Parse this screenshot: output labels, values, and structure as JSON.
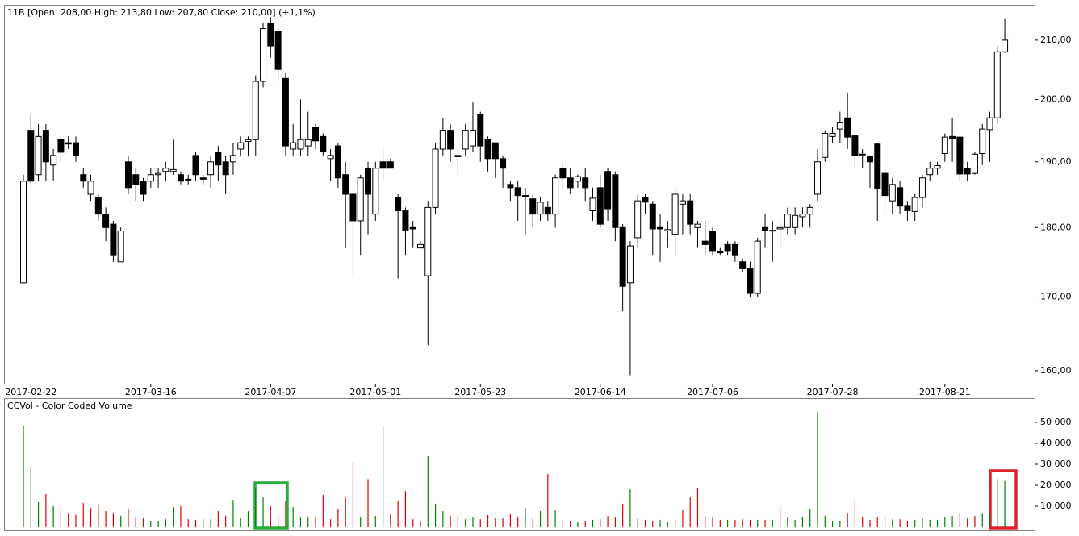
{
  "chart_data": [
    {
      "type": "candlestick",
      "title": "11B [Open: 208,00  High: 213,80  Low: 207,80  Close: 210,00] (+1,1%)",
      "categories": [
        null,
        "2017-02-22",
        null,
        null,
        null,
        null,
        null,
        null,
        null,
        null,
        null,
        null,
        null,
        null,
        null,
        null,
        null,
        "2017-03-16",
        null,
        null,
        null,
        null,
        null,
        null,
        null,
        null,
        null,
        null,
        null,
        null,
        null,
        null,
        null,
        "2017-04-07",
        null,
        null,
        null,
        null,
        null,
        null,
        null,
        null,
        null,
        null,
        null,
        null,
        null,
        "2017-05-01",
        null,
        null,
        null,
        null,
        null,
        null,
        null,
        null,
        null,
        null,
        null,
        null,
        null,
        "2017-05-23",
        null,
        null,
        null,
        null,
        null,
        null,
        null,
        null,
        null,
        null,
        null,
        null,
        null,
        null,
        null,
        "2017-06-14",
        null,
        null,
        null,
        null,
        null,
        null,
        null,
        null,
        null,
        null,
        null,
        null,
        null,
        null,
        "2017-07-06",
        null,
        null,
        null,
        null,
        null,
        null,
        null,
        null,
        null,
        null,
        null,
        null,
        null,
        null,
        null,
        "2017-07-28",
        null,
        null,
        null,
        null,
        null,
        null,
        null,
        null,
        null,
        null,
        null,
        null,
        null,
        null,
        "2017-08-21",
        null,
        null,
        null,
        null,
        null,
        null,
        null,
        null
      ],
      "open": [
        172,
        195,
        188,
        195,
        189.5,
        193.5,
        193,
        193,
        188,
        185,
        184.5,
        182,
        180.5,
        175,
        190,
        188,
        187,
        187,
        188,
        188.5,
        188.5,
        188,
        187.3,
        191,
        187.5,
        188,
        191.5,
        190,
        190,
        192,
        193.2,
        193.5,
        203,
        213,
        211.5,
        203.5,
        192,
        192,
        192.5,
        195.5,
        194,
        190.5,
        192.5,
        188,
        185,
        181,
        189,
        182,
        190,
        190,
        184.5,
        182.5,
        180,
        177,
        173,
        183,
        192,
        195,
        191,
        192,
        192.5,
        197.5,
        193.5,
        193,
        190.5,
        186.5,
        186,
        184.8,
        184.3,
        182,
        183,
        182,
        189,
        187.5,
        187,
        187.5,
        182.5,
        186,
        188.5,
        188,
        180,
        172,
        178.5,
        184.5,
        183.5,
        180,
        179.5,
        179,
        183.5,
        184,
        180,
        178,
        179.5,
        176.5,
        177.5,
        177.5,
        175,
        174,
        170.5,
        180,
        179.5,
        179.8,
        180,
        180,
        181.6,
        182,
        185,
        190.7,
        194,
        195.2,
        197,
        194.1,
        191.2,
        190.8,
        192.8,
        188.2,
        184,
        186,
        183.3,
        182.4,
        184.5,
        188,
        189,
        191.3,
        194,
        193.9,
        189,
        188.2,
        191.3,
        195.1,
        197,
        208
      ],
      "high": [
        188,
        197.5,
        196,
        196,
        192,
        194,
        194,
        194,
        189,
        188,
        185,
        183,
        181,
        180,
        191,
        189,
        187.5,
        189,
        189,
        190,
        193.5,
        188.5,
        188,
        191.5,
        188,
        191,
        192.5,
        191,
        193,
        194,
        194,
        204,
        213,
        214,
        212,
        204.5,
        196,
        200,
        198,
        196,
        194.5,
        192,
        193,
        190,
        186,
        188,
        190,
        190,
        192,
        190.5,
        185,
        183,
        181,
        178,
        184,
        193,
        197,
        196,
        192,
        196,
        199.5,
        198,
        194,
        193,
        191,
        187,
        187,
        186,
        185,
        184.5,
        184,
        188,
        190,
        189,
        188,
        189,
        186,
        188,
        189,
        188.5,
        180.5,
        178,
        185,
        185,
        184,
        182,
        181,
        186,
        185,
        185,
        181,
        181,
        180,
        177,
        178,
        178,
        175.5,
        175,
        178.5,
        182,
        181,
        181,
        183,
        183,
        183,
        183.5,
        192,
        195,
        195.5,
        198,
        201,
        195,
        192,
        191,
        193,
        189,
        187.5,
        187,
        184,
        185,
        188,
        190,
        190,
        194.5,
        197,
        194,
        190,
        191.5,
        196,
        198,
        209,
        213.8
      ],
      "low": [
        172,
        186.5,
        187,
        187,
        187,
        190,
        192,
        190,
        186,
        184,
        181,
        178,
        175,
        175,
        185,
        184,
        184,
        186,
        186,
        187,
        188,
        186.5,
        186.5,
        187,
        186.5,
        186,
        187,
        185,
        188,
        191,
        191,
        191,
        202,
        207,
        203,
        191,
        191,
        191,
        191,
        192,
        191,
        187,
        186,
        177,
        172.8,
        176,
        179,
        181,
        187,
        189,
        172.6,
        176,
        177,
        177,
        163.4,
        182,
        191,
        190,
        188,
        191,
        191.5,
        190,
        188.5,
        187.5,
        186,
        184,
        181,
        179,
        180,
        181,
        181,
        180,
        186,
        185,
        186,
        184,
        181,
        180,
        181,
        178,
        168,
        159.4,
        177,
        182,
        176,
        175,
        177,
        176,
        179,
        179,
        177,
        176,
        176,
        176,
        176,
        175,
        173.5,
        170,
        170,
        177,
        175,
        177,
        179,
        179,
        180,
        180,
        184,
        190,
        193,
        193,
        192,
        189,
        189,
        186,
        181,
        182,
        182,
        182,
        181,
        181,
        183,
        187,
        188,
        190,
        190,
        187,
        187,
        188,
        189.5,
        190,
        196,
        207.8
      ],
      "close": [
        187,
        187,
        194,
        190,
        191,
        191.5,
        192.8,
        191,
        187,
        187,
        182,
        180,
        176,
        179.5,
        186,
        186.5,
        185,
        188,
        188.2,
        189,
        188.8,
        187,
        187.2,
        188,
        187.3,
        190,
        189.5,
        188,
        191,
        193,
        193.5,
        203,
        212,
        209,
        205,
        192.5,
        193,
        193.5,
        193.5,
        193.3,
        191.6,
        191,
        187.5,
        185,
        181,
        187.5,
        185,
        189,
        189,
        189,
        182.5,
        179.5,
        179.8,
        177.5,
        183,
        192,
        195,
        192,
        190.8,
        195,
        195,
        192.5,
        190.5,
        190.5,
        189,
        186,
        184.8,
        184.6,
        182,
        183.8,
        182,
        187.5,
        187.5,
        186,
        187.7,
        186,
        184.4,
        180.5,
        182.8,
        180,
        171.5,
        177.3,
        184,
        183.8,
        179.8,
        179.8,
        179.7,
        185,
        184,
        180.5,
        180.5,
        177.5,
        176.5,
        176.3,
        176.5,
        176,
        174,
        170.5,
        178,
        179.5,
        179.6,
        180,
        182,
        181.8,
        182,
        183,
        190,
        194.5,
        194.5,
        196.3,
        193.9,
        191,
        191.1,
        190,
        185.8,
        184.8,
        186.5,
        183.2,
        182.5,
        184.5,
        187.5,
        189,
        189.4,
        193.9,
        193.7,
        188.1,
        188.1,
        191.2,
        195.2,
        197,
        208,
        210
      ],
      "up_color": "#ffffff",
      "down_color": "#000000",
      "log_scale": true,
      "ylim": [
        158.3,
        216.2
      ],
      "yticks": [
        {
          "value": 160,
          "label": "160,00"
        },
        {
          "value": 170,
          "label": "170,00"
        },
        {
          "value": 180,
          "label": "180,00"
        },
        {
          "value": 190,
          "label": "190,00"
        },
        {
          "value": 200,
          "label": "200,00"
        },
        {
          "value": 210,
          "label": "210,00"
        }
      ]
    },
    {
      "type": "bar",
      "title": "CCVol - Color Coded Volume",
      "values": [
        48500,
        28500,
        12000,
        15800,
        10000,
        9200,
        6500,
        6000,
        11500,
        9200,
        11000,
        7700,
        7000,
        5400,
        8800,
        4600,
        4200,
        3100,
        3100,
        3800,
        9600,
        10000,
        3800,
        3500,
        3800,
        3800,
        7700,
        5400,
        13000,
        4200,
        7700,
        18800,
        14200,
        10000,
        5000,
        12300,
        9600,
        4600,
        4600,
        4600,
        15400,
        3800,
        8800,
        14200,
        31100,
        4600,
        23000,
        5400,
        48000,
        6200,
        12700,
        17300,
        3800,
        2700,
        33800,
        11200,
        7700,
        5400,
        5400,
        3800,
        5000,
        3800,
        5800,
        4200,
        4200,
        6200,
        4600,
        9200,
        4200,
        7700,
        25400,
        8100,
        3500,
        2700,
        2300,
        3100,
        3500,
        3800,
        5400,
        4600,
        11200,
        18100,
        4200,
        3500,
        3100,
        3500,
        2300,
        3500,
        8100,
        14200,
        18500,
        5400,
        5000,
        3500,
        3500,
        3500,
        3800,
        3500,
        3500,
        3500,
        3500,
        9600,
        5000,
        3500,
        5000,
        8500,
        55000,
        5400,
        2700,
        3100,
        6500,
        13000,
        5000,
        3500,
        4600,
        5400,
        3800,
        3800,
        3100,
        3500,
        4200,
        3500,
        3500,
        5000,
        5400,
        6500,
        4200,
        5400,
        6500,
        7000,
        23000,
        22000
      ],
      "colors": [
        "#008000",
        "#008000",
        "#008000",
        "#e00000",
        "#008000",
        "#008000",
        "#e00000",
        "#e00000",
        "#e00000",
        "#e00000",
        "#e00000",
        "#e00000",
        "#e00000",
        "#008000",
        "#e00000",
        "#e00000",
        "#e00000",
        "#008000",
        "#008000",
        "#008000",
        "#008000",
        "#e00000",
        "#e00000",
        "#e00000",
        "#008000",
        "#008000",
        "#e00000",
        "#e00000",
        "#008000",
        "#008000",
        "#008000",
        "#008000",
        "#008000",
        "#e00000",
        "#e00000",
        "#e00000",
        "#008000",
        "#008000",
        "#008000",
        "#e00000",
        "#e00000",
        "#e00000",
        "#e00000",
        "#e00000",
        "#e00000",
        "#008000",
        "#e00000",
        "#008000",
        "#008000",
        "#e00000",
        "#e00000",
        "#e00000",
        "#e00000",
        "#e00000",
        "#008000",
        "#008000",
        "#008000",
        "#e00000",
        "#e00000",
        "#008000",
        "#008000",
        "#e00000",
        "#e00000",
        "#e00000",
        "#e00000",
        "#e00000",
        "#e00000",
        "#008000",
        "#e00000",
        "#008000",
        "#e00000",
        "#008000",
        "#e00000",
        "#e00000",
        "#008000",
        "#e00000",
        "#008000",
        "#e00000",
        "#e00000",
        "#e00000",
        "#e00000",
        "#008000",
        "#008000",
        "#e00000",
        "#e00000",
        "#008000",
        "#008000",
        "#008000",
        "#e00000",
        "#e00000",
        "#e00000",
        "#e00000",
        "#e00000",
        "#e00000",
        "#008000",
        "#e00000",
        "#e00000",
        "#e00000",
        "#008000",
        "#e00000",
        "#008000",
        "#e00000",
        "#008000",
        "#008000",
        "#008000",
        "#008000",
        "#008000",
        "#008000",
        "#008000",
        "#008000",
        "#e00000",
        "#e00000",
        "#e00000",
        "#e00000",
        "#e00000",
        "#e00000",
        "#008000",
        "#e00000",
        "#e00000",
        "#008000",
        "#008000",
        "#008000",
        "#008000",
        "#008000",
        "#008000",
        "#e00000",
        "#e00000",
        "#e00000",
        "#008000",
        "#008000",
        "#008000",
        "#008000"
      ],
      "ylim": [
        -1500,
        61500
      ],
      "yticks": [
        {
          "value": 10000,
          "label": "10 000"
        },
        {
          "value": 20000,
          "label": "20 000"
        },
        {
          "value": 30000,
          "label": "30 000"
        },
        {
          "value": 40000,
          "label": "40 000"
        },
        {
          "value": 50000,
          "label": "50 000"
        }
      ]
    }
  ]
}
